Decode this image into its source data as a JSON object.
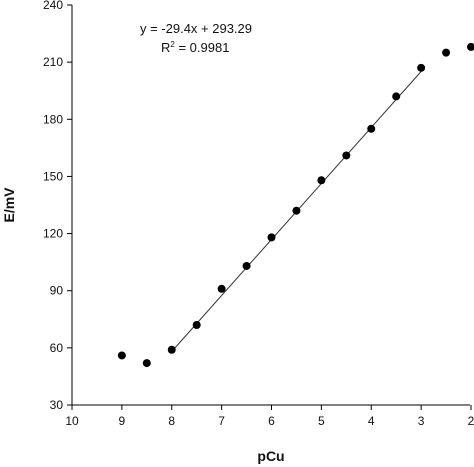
{
  "chart_data": {
    "type": "scatter",
    "xlabel": "pCu",
    "ylabel": "E/mV",
    "xlim": [
      10,
      2
    ],
    "ylim": [
      30,
      240
    ],
    "x_reversed": true,
    "x_ticks": [
      10,
      9,
      8,
      7,
      6,
      5,
      4,
      3,
      2
    ],
    "y_ticks": [
      30,
      60,
      90,
      120,
      150,
      180,
      210,
      240
    ],
    "grid": false,
    "series": [
      {
        "points": [
          {
            "x": 9.0,
            "y": 56
          },
          {
            "x": 8.5,
            "y": 52
          },
          {
            "x": 8.0,
            "y": 59
          },
          {
            "x": 7.5,
            "y": 72
          },
          {
            "x": 7.0,
            "y": 91
          },
          {
            "x": 6.5,
            "y": 103
          },
          {
            "x": 6.0,
            "y": 118
          },
          {
            "x": 5.5,
            "y": 132
          },
          {
            "x": 5.0,
            "y": 148
          },
          {
            "x": 4.5,
            "y": 161
          },
          {
            "x": 4.0,
            "y": 175
          },
          {
            "x": 3.5,
            "y": 192
          },
          {
            "x": 3.0,
            "y": 207
          },
          {
            "x": 2.5,
            "y": 215
          },
          {
            "x": 2.0,
            "y": 218
          }
        ]
      }
    ],
    "trendline": {
      "slope": -29.4,
      "intercept": 293.29,
      "x_range": [
        8.0,
        3.0
      ]
    },
    "annotations": {
      "equation": "y = -29.4x + 293.29",
      "r2_label": "R",
      "r2_sup": "2",
      "r2_value": " = 0.9981"
    }
  }
}
